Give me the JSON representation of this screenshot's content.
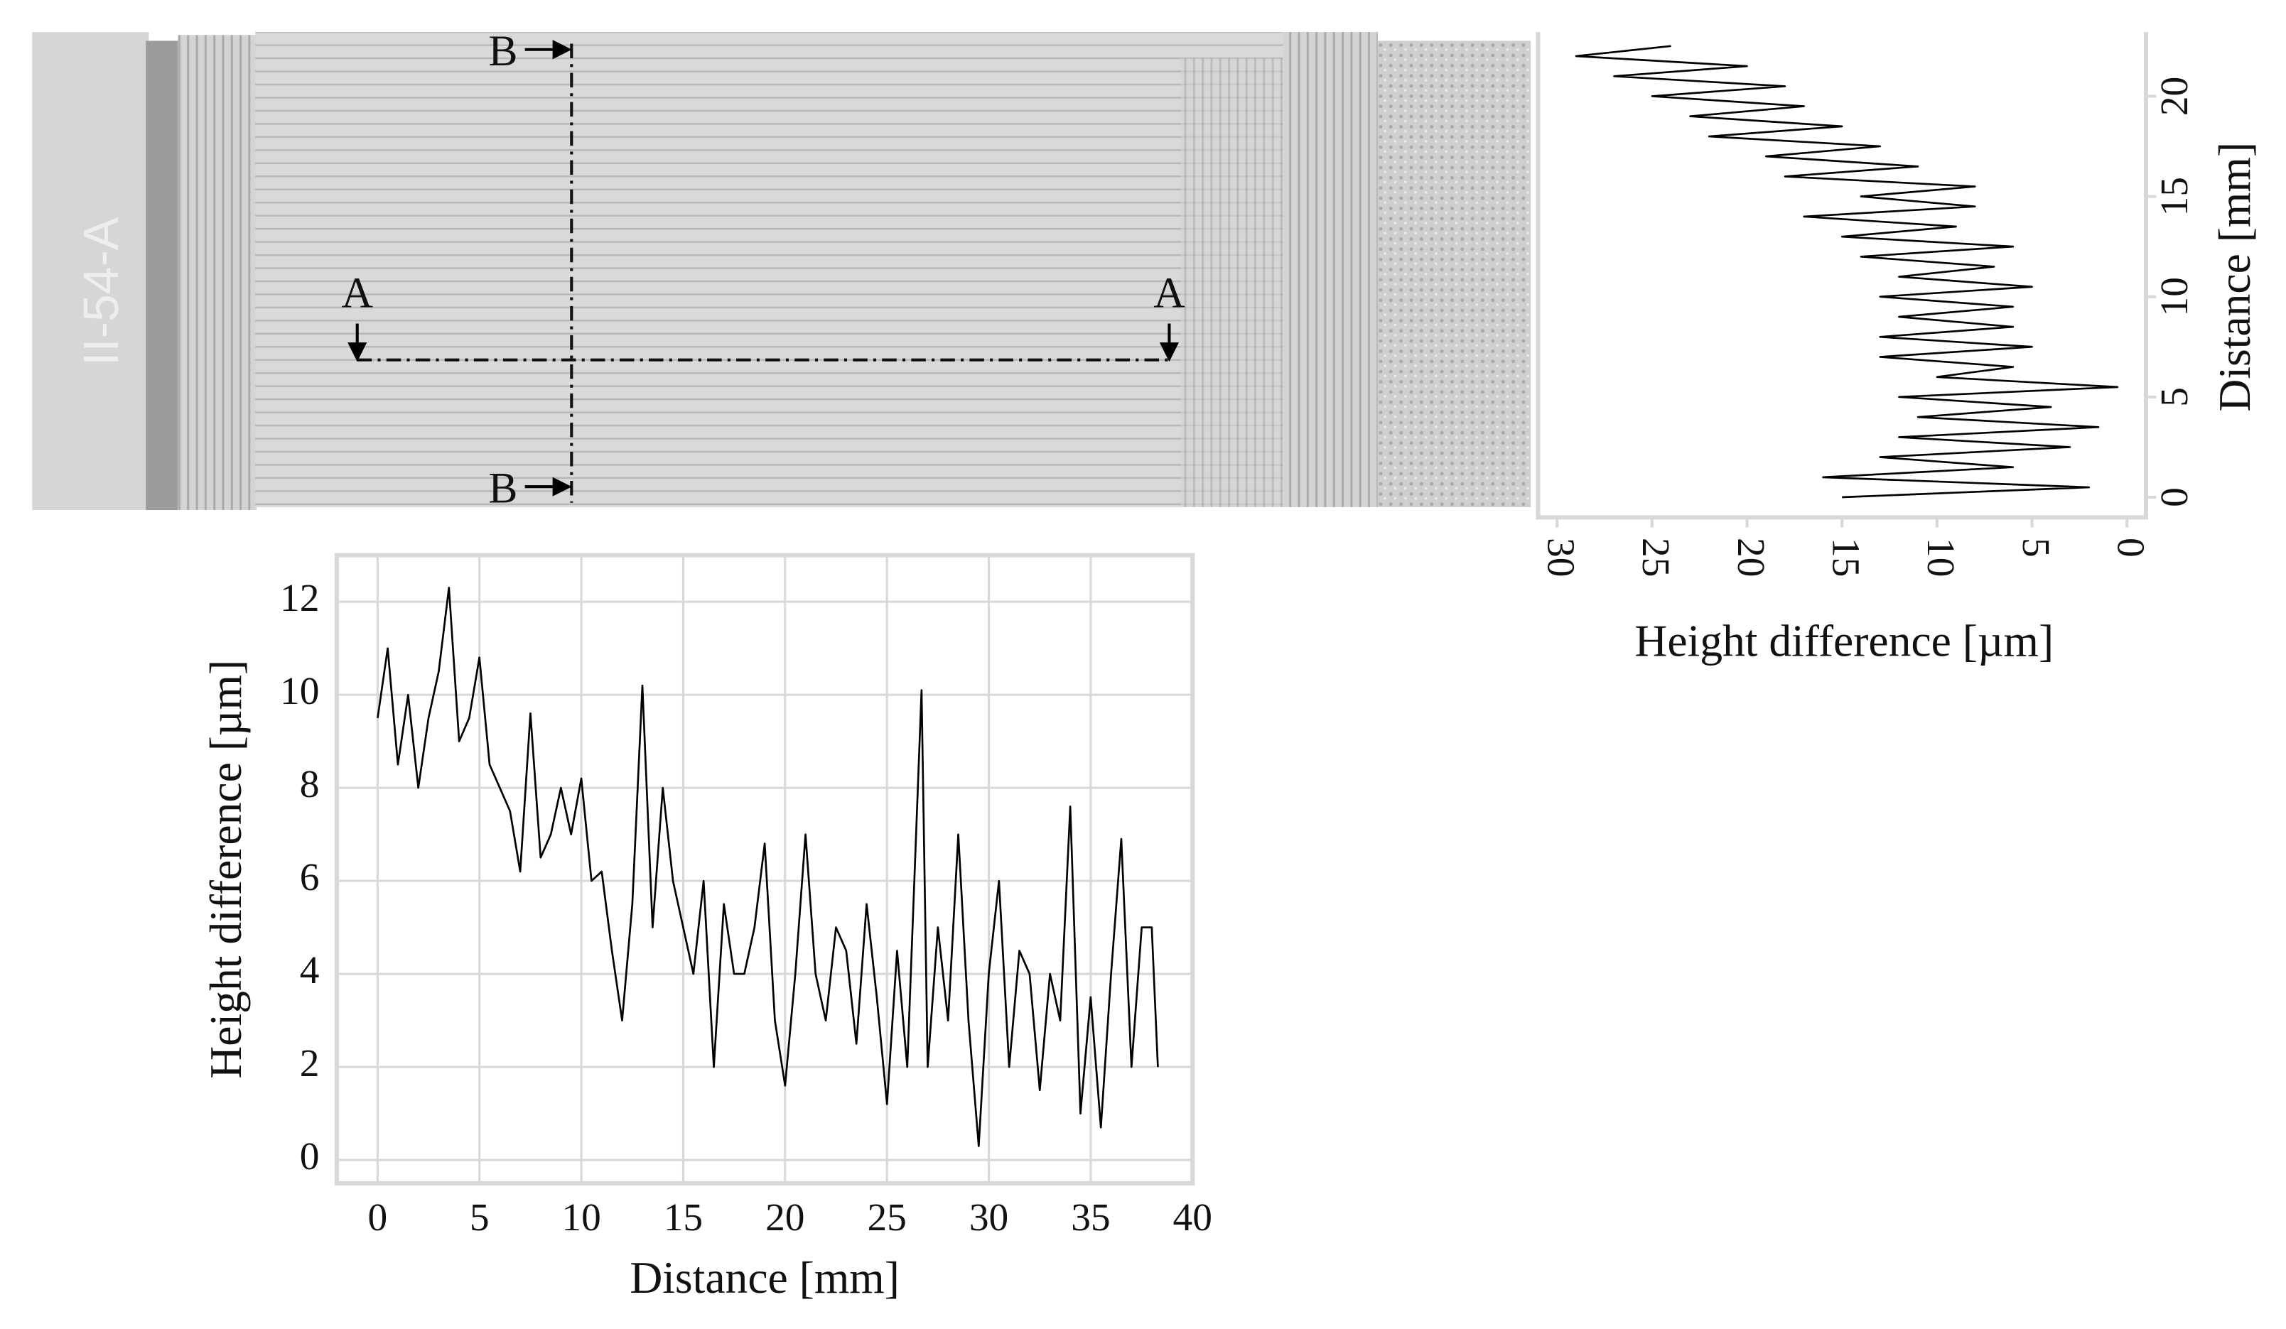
{
  "scan": {
    "specimen_label": "II-54-A",
    "section_labels": [
      "A",
      "A",
      "B",
      "B"
    ]
  },
  "chart_data": [
    {
      "type": "line",
      "xlabel": "Distance [mm]",
      "ylabel": "Height difference [µm]",
      "color": "#000000",
      "grid": true,
      "x": [
        0,
        0.5,
        1,
        1.5,
        2,
        2.5,
        3,
        3.5,
        4,
        4.5,
        5,
        5.5,
        6,
        6.5,
        7,
        7.5,
        8,
        8.5,
        9,
        9.5,
        10,
        10.5,
        11,
        11.5,
        12,
        12.5,
        13,
        13.5,
        14,
        14.5,
        15,
        15.5,
        16,
        16.5,
        17,
        17.5,
        18,
        18.5,
        19,
        19.5,
        20,
        20.5,
        21,
        21.5,
        22,
        22.5,
        23,
        23.5,
        24,
        24.5,
        25,
        25.5,
        26,
        26.7,
        27,
        27.5,
        28,
        28.5,
        29,
        29.5,
        30,
        30.5,
        31,
        31.5,
        32,
        32.5,
        33,
        33.5,
        34,
        34.5,
        35,
        35.5,
        36,
        36.5,
        37,
        37.5,
        38,
        38.3
      ],
      "values": [
        9.5,
        11,
        8.5,
        10,
        8,
        9.5,
        10.5,
        12.3,
        9,
        9.5,
        10.8,
        8.5,
        8,
        7.5,
        6.2,
        9.6,
        6.5,
        7,
        8,
        7,
        8.2,
        6,
        6.2,
        4.5,
        3,
        5.5,
        10.2,
        5,
        8,
        6,
        5,
        4,
        6,
        2,
        5.5,
        4,
        4,
        5,
        6.8,
        3,
        1.6,
        4,
        7,
        4,
        3,
        5,
        4.5,
        2.5,
        5.5,
        3.5,
        1.2,
        4.5,
        2,
        10.1,
        2,
        5,
        3,
        7,
        3,
        0.3,
        4,
        6,
        2,
        4.5,
        4,
        1.5,
        4,
        3,
        7.6,
        1,
        3.5,
        0.7,
        4,
        6.9,
        2,
        5,
        5,
        2
      ],
      "xlim": [
        -2,
        40
      ],
      "ylim": [
        -0.5,
        13
      ],
      "xticks": [
        0,
        5,
        10,
        15,
        20,
        25,
        30,
        35,
        40
      ],
      "yticks": [
        0,
        2,
        4,
        6,
        8,
        10,
        12
      ]
    },
    {
      "type": "line",
      "orientation": "rotated",
      "xlabel": "Distance [mm]",
      "ylabel": "Height difference [µm]",
      "color": "#000000",
      "grid": false,
      "x": [
        0,
        0.5,
        1,
        1.5,
        2,
        2.5,
        3,
        3.5,
        4,
        4.5,
        5,
        5.5,
        6,
        6.5,
        7,
        7.5,
        8,
        8.5,
        9,
        9.5,
        10,
        10.5,
        11,
        11.5,
        12,
        12.5,
        13,
        13.5,
        14,
        14.5,
        15,
        15.5,
        16,
        16.5,
        17,
        17.5,
        18,
        18.5,
        19,
        19.5,
        20,
        20.5,
        21,
        21.5,
        22,
        22.5
      ],
      "values": [
        15,
        2,
        16,
        6,
        13,
        3,
        12,
        1.5,
        11,
        4,
        12,
        0.5,
        10,
        6,
        13,
        5,
        13,
        6,
        12,
        6,
        13,
        5,
        12,
        7,
        14,
        6,
        15,
        9,
        17,
        8,
        14,
        8,
        18,
        11,
        19,
        13,
        22,
        15,
        23,
        17,
        25,
        18,
        27,
        20,
        29,
        24
      ],
      "xlim": [
        -1,
        23.2
      ],
      "ylim": [
        31,
        -1
      ],
      "xticks": [
        0,
        5,
        10,
        15,
        20
      ],
      "yticks": [
        30,
        25,
        20,
        15,
        10,
        5,
        0
      ]
    }
  ]
}
